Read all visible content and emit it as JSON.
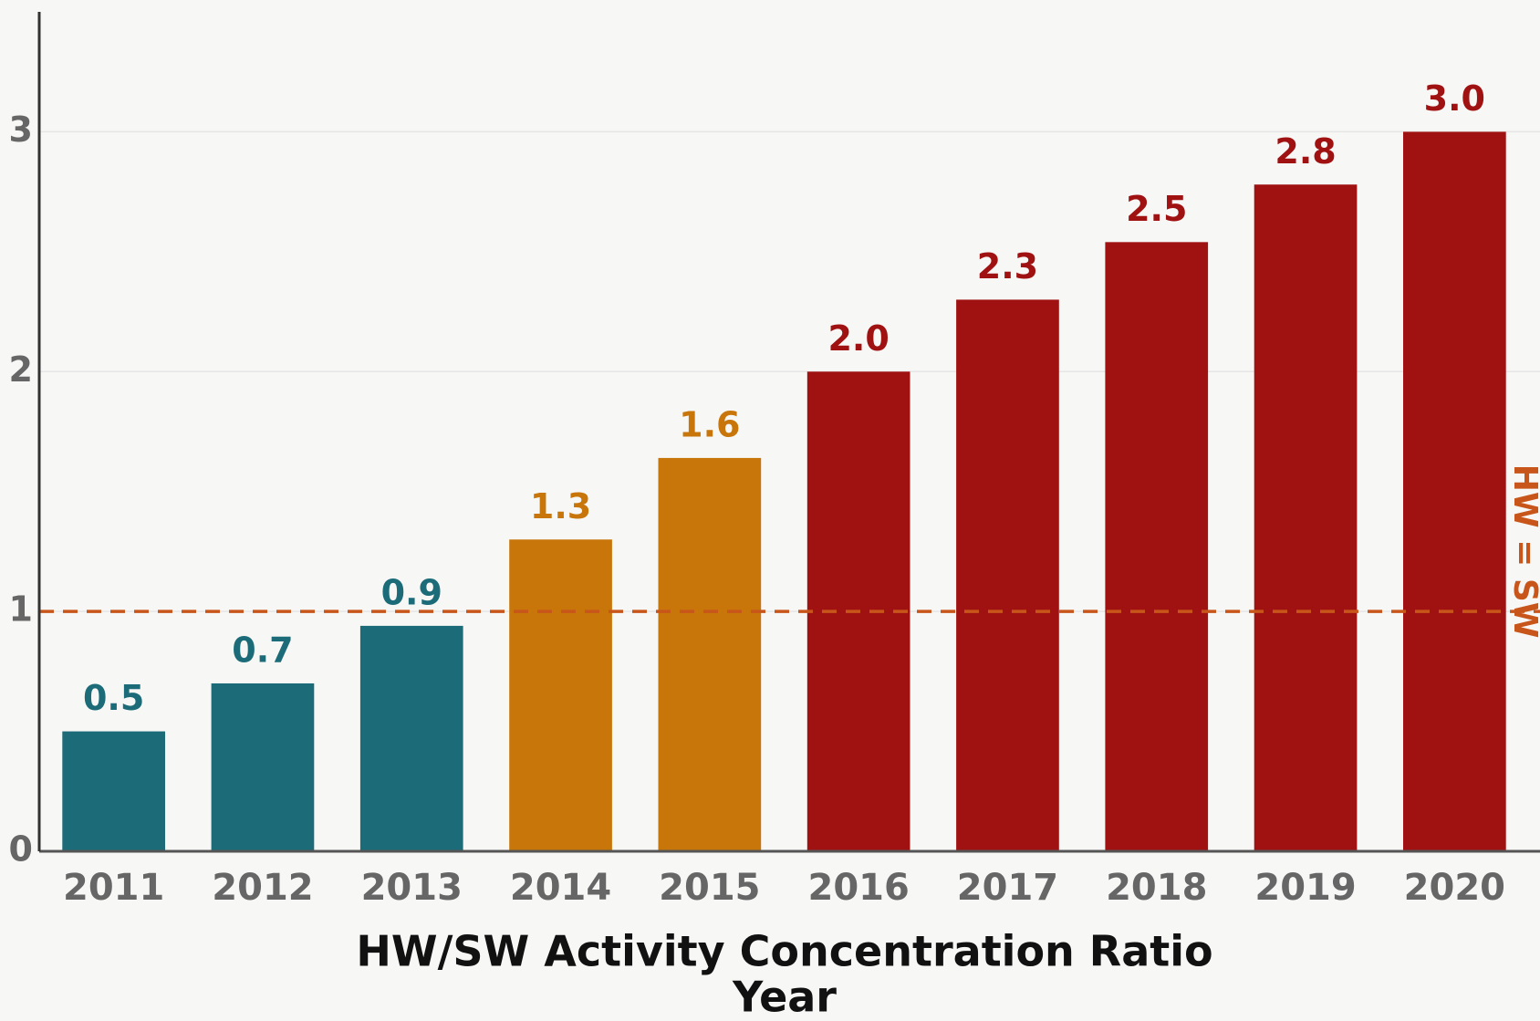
{
  "chart_data": {
    "type": "bar",
    "title": "HW/SW Activity Concentration Ratio",
    "x_label": "Year",
    "categories": [
      "2011",
      "2012",
      "2013",
      "2014",
      "2015",
      "2016",
      "2017",
      "2018",
      "2019",
      "2020"
    ],
    "values": [
      0.5,
      0.7,
      0.94,
      1.3,
      1.64,
      2.0,
      2.3,
      2.54,
      2.78,
      3.0
    ],
    "value_labels": [
      "0.5",
      "0.7",
      "0.9",
      "1.3",
      "1.6",
      "2.0",
      "2.3",
      "2.5",
      "2.8",
      "3.0"
    ],
    "colors": [
      "#1b6b78",
      "#1b6b78",
      "#1b6b78",
      "#c8760a",
      "#c8760a",
      "#a01112",
      "#a01112",
      "#a01112",
      "#a01112",
      "#a01112"
    ],
    "ylim": [
      0,
      3.5
    ],
    "yticks": [
      0,
      1,
      2,
      3
    ],
    "grid": true,
    "reference_line": {
      "value": 1,
      "label": "HW = SW",
      "color": "#c8561a"
    }
  }
}
